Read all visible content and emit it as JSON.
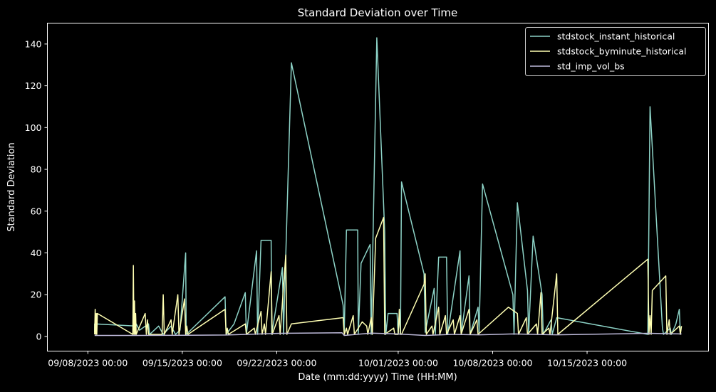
{
  "chart_data": {
    "type": "line",
    "title": "Standard Deviation over Time",
    "xlabel": "Date (mm:dd:yyyy) Time (HH:MM)",
    "ylabel": "Standard Deviation",
    "xlim": [
      "2023-09-05T00:00",
      "2023-10-24T00:00"
    ],
    "ylim": [
      -7,
      150
    ],
    "x_ticks": [
      {
        "x": "2023-09-08T00:00",
        "label": "09/08/2023 00:00"
      },
      {
        "x": "2023-09-15T00:00",
        "label": "09/15/2023 00:00"
      },
      {
        "x": "2023-09-22T00:00",
        "label": "09/22/2023 00:00"
      },
      {
        "x": "2023-10-01T00:00",
        "label": "10/01/2023 00:00"
      },
      {
        "x": "2023-10-08T00:00",
        "label": "10/08/2023 00:00"
      },
      {
        "x": "2023-10-15T00:00",
        "label": "10/15/2023 00:00"
      }
    ],
    "y_ticks": [
      0,
      20,
      40,
      60,
      80,
      100,
      120,
      140
    ],
    "grid": false,
    "legend_position": "top-right",
    "series": [
      {
        "name": "stdstock_instant_historical",
        "color": "#8dd3c7",
        "points": [
          [
            "2023-09-08T12:00",
            2
          ],
          [
            "2023-09-08T12:00",
            6
          ],
          [
            "2023-09-11T12:00",
            5
          ],
          [
            "2023-09-11T12:00",
            1
          ],
          [
            "2023-09-11T14:00",
            6
          ],
          [
            "2023-09-11T20:00",
            3
          ],
          [
            "2023-09-12T12:00",
            6
          ],
          [
            "2023-09-12T14:00",
            1
          ],
          [
            "2023-09-13T06:00",
            5
          ],
          [
            "2023-09-13T14:00",
            1
          ],
          [
            "2023-09-14T04:00",
            5
          ],
          [
            "2023-09-14T12:00",
            1
          ],
          [
            "2023-09-14T20:00",
            3
          ],
          [
            "2023-09-15T06:00",
            40
          ],
          [
            "2023-09-15T07:00",
            1
          ],
          [
            "2023-09-18T04:00",
            19
          ],
          [
            "2023-09-18T06:00",
            1
          ],
          [
            "2023-09-18T20:00",
            6
          ],
          [
            "2023-09-19T16:00",
            21
          ],
          [
            "2023-09-19T18:00",
            1
          ],
          [
            "2023-09-20T12:00",
            41
          ],
          [
            "2023-09-20T14:00",
            1
          ],
          [
            "2023-09-20T20:00",
            46
          ],
          [
            "2023-09-21T14:00",
            46
          ],
          [
            "2023-09-21T15:00",
            1
          ],
          [
            "2023-09-22T10:00",
            33
          ],
          [
            "2023-09-22T12:00",
            1
          ],
          [
            "2023-09-23T02:00",
            131
          ],
          [
            "2023-09-26T22:00",
            15
          ],
          [
            "2023-09-27T00:00",
            2
          ],
          [
            "2023-09-27T04:00",
            51
          ],
          [
            "2023-09-28T00:00",
            51
          ],
          [
            "2023-09-28T01:00",
            1
          ],
          [
            "2023-09-28T06:00",
            35
          ],
          [
            "2023-09-28T22:00",
            44
          ],
          [
            "2023-09-29T00:00",
            1
          ],
          [
            "2023-09-29T10:00",
            143
          ],
          [
            "2023-09-30T00:00",
            50
          ],
          [
            "2023-09-30T02:00",
            1
          ],
          [
            "2023-09-30T06:00",
            11
          ],
          [
            "2023-09-30T22:00",
            11
          ],
          [
            "2023-10-01T00:00",
            1
          ],
          [
            "2023-10-01T02:00",
            11
          ],
          [
            "2023-10-01T04:00",
            1
          ],
          [
            "2023-10-01T06:00",
            74
          ],
          [
            "2023-10-02T22:00",
            30
          ],
          [
            "2023-10-03T00:00",
            2
          ],
          [
            "2023-10-03T16:00",
            23
          ],
          [
            "2023-10-03T18:00",
            1
          ],
          [
            "2023-10-04T00:00",
            38
          ],
          [
            "2023-10-04T14:00",
            38
          ],
          [
            "2023-10-04T16:00",
            1
          ],
          [
            "2023-10-05T14:00",
            41
          ],
          [
            "2023-10-05T16:00",
            1
          ],
          [
            "2023-10-06T06:00",
            29
          ],
          [
            "2023-10-06T08:00",
            1
          ],
          [
            "2023-10-06T22:00",
            14
          ],
          [
            "2023-10-07T00:00",
            2
          ],
          [
            "2023-10-07T06:00",
            73
          ],
          [
            "2023-10-09T12:00",
            20
          ],
          [
            "2023-10-09T14:00",
            1
          ],
          [
            "2023-10-09T20:00",
            64
          ],
          [
            "2023-10-10T14:00",
            22
          ],
          [
            "2023-10-10T16:00",
            1
          ],
          [
            "2023-10-11T00:00",
            48
          ],
          [
            "2023-10-11T16:00",
            20
          ],
          [
            "2023-10-11T18:00",
            1
          ],
          [
            "2023-10-12T08:00",
            8
          ],
          [
            "2023-10-12T10:00",
            1
          ],
          [
            "2023-10-12T18:00",
            9
          ],
          [
            "2023-10-19T12:00",
            1
          ],
          [
            "2023-10-19T16:00",
            110
          ],
          [
            "2023-10-20T14:00",
            4
          ],
          [
            "2023-10-20T16:00",
            1
          ],
          [
            "2023-10-21T04:00",
            4
          ],
          [
            "2023-10-21T06:00",
            1
          ],
          [
            "2023-10-21T14:00",
            6
          ],
          [
            "2023-10-21T20:00",
            13
          ],
          [
            "2023-10-21T22:00",
            1
          ]
        ]
      },
      {
        "name": "stdstock_byminute_historical",
        "color": "#ffffb3",
        "points": [
          [
            "2023-09-08T12:00",
            1
          ],
          [
            "2023-09-08T13:00",
            13
          ],
          [
            "2023-09-08T14:00",
            1
          ],
          [
            "2023-09-08T15:00",
            11
          ],
          [
            "2023-09-08T16:00",
            1
          ],
          [
            "2023-09-08T17:00",
            11
          ],
          [
            "2023-09-11T08:00",
            1
          ],
          [
            "2023-09-11T09:00",
            34
          ],
          [
            "2023-09-11T10:00",
            1
          ],
          [
            "2023-09-11T11:00",
            17
          ],
          [
            "2023-09-11T12:00",
            1
          ],
          [
            "2023-09-11T13:00",
            11
          ],
          [
            "2023-09-11T14:00",
            1
          ],
          [
            "2023-09-12T06:00",
            11
          ],
          [
            "2023-09-12T08:00",
            1
          ],
          [
            "2023-09-12T10:00",
            8
          ],
          [
            "2023-09-12T12:00",
            1
          ],
          [
            "2023-09-13T12:00",
            1
          ],
          [
            "2023-09-13T14:00",
            20
          ],
          [
            "2023-09-13T16:00",
            1
          ],
          [
            "2023-09-14T04:00",
            8
          ],
          [
            "2023-09-14T06:00",
            1
          ],
          [
            "2023-09-14T16:00",
            20
          ],
          [
            "2023-09-14T18:00",
            1
          ],
          [
            "2023-09-15T04:00",
            18
          ],
          [
            "2023-09-15T06:00",
            1
          ],
          [
            "2023-09-15T08:00",
            5
          ],
          [
            "2023-09-15T10:00",
            1
          ],
          [
            "2023-09-18T04:00",
            13
          ],
          [
            "2023-09-18T06:00",
            1
          ],
          [
            "2023-09-18T08:00",
            4
          ],
          [
            "2023-09-18T10:00",
            1
          ],
          [
            "2023-09-19T16:00",
            6
          ],
          [
            "2023-09-19T18:00",
            1
          ],
          [
            "2023-09-20T08:00",
            4
          ],
          [
            "2023-09-20T10:00",
            1
          ],
          [
            "2023-09-20T20:00",
            12
          ],
          [
            "2023-09-20T22:00",
            1
          ],
          [
            "2023-09-21T02:00",
            6
          ],
          [
            "2023-09-21T04:00",
            1
          ],
          [
            "2023-09-21T14:00",
            31
          ],
          [
            "2023-09-21T16:00",
            1
          ],
          [
            "2023-09-22T04:00",
            10
          ],
          [
            "2023-09-22T06:00",
            1
          ],
          [
            "2023-09-22T16:00",
            39
          ],
          [
            "2023-09-22T18:00",
            1
          ],
          [
            "2023-09-23T02:00",
            6
          ],
          [
            "2023-09-26T22:00",
            9
          ],
          [
            "2023-09-27T00:00",
            1
          ],
          [
            "2023-09-27T04:00",
            4
          ],
          [
            "2023-09-27T06:00",
            1
          ],
          [
            "2023-09-27T16:00",
            10
          ],
          [
            "2023-09-27T18:00",
            1
          ],
          [
            "2023-09-28T08:00",
            7
          ],
          [
            "2023-09-28T16:00",
            5
          ],
          [
            "2023-09-28T18:00",
            1
          ],
          [
            "2023-09-29T00:00",
            9
          ],
          [
            "2023-09-29T02:00",
            1
          ],
          [
            "2023-09-29T08:00",
            47
          ],
          [
            "2023-09-29T22:00",
            57
          ],
          [
            "2023-09-30T00:00",
            1
          ],
          [
            "2023-09-30T16:00",
            4
          ],
          [
            "2023-09-30T18:00",
            1
          ],
          [
            "2023-10-01T00:00",
            1
          ],
          [
            "2023-10-01T02:00",
            13
          ],
          [
            "2023-10-01T04:00",
            1
          ],
          [
            "2023-10-01T06:00",
            1
          ],
          [
            "2023-10-02T22:00",
            25
          ],
          [
            "2023-10-03T00:00",
            30
          ],
          [
            "2023-10-03T02:00",
            1
          ],
          [
            "2023-10-03T12:00",
            5
          ],
          [
            "2023-10-03T14:00",
            1
          ],
          [
            "2023-10-04T00:00",
            14
          ],
          [
            "2023-10-04T02:00",
            1
          ],
          [
            "2023-10-04T12:00",
            10
          ],
          [
            "2023-10-04T14:00",
            1
          ],
          [
            "2023-10-05T02:00",
            8
          ],
          [
            "2023-10-05T04:00",
            1
          ],
          [
            "2023-10-05T14:00",
            10
          ],
          [
            "2023-10-05T16:00",
            1
          ],
          [
            "2023-10-06T06:00",
            13
          ],
          [
            "2023-10-06T08:00",
            1
          ],
          [
            "2023-10-06T20:00",
            8
          ],
          [
            "2023-10-06T22:00",
            1
          ],
          [
            "2023-10-09T04:00",
            14
          ],
          [
            "2023-10-09T20:00",
            11
          ],
          [
            "2023-10-09T22:00",
            1
          ],
          [
            "2023-10-10T12:00",
            9
          ],
          [
            "2023-10-10T14:00",
            1
          ],
          [
            "2023-10-11T06:00",
            6
          ],
          [
            "2023-10-11T08:00",
            1
          ],
          [
            "2023-10-11T14:00",
            21
          ],
          [
            "2023-10-11T16:00",
            1
          ],
          [
            "2023-10-12T04:00",
            4
          ],
          [
            "2023-10-12T06:00",
            1
          ],
          [
            "2023-10-12T18:00",
            30
          ],
          [
            "2023-10-12T20:00",
            1
          ],
          [
            "2023-10-19T12:00",
            37
          ],
          [
            "2023-10-19T14:00",
            1
          ],
          [
            "2023-10-19T16:00",
            10
          ],
          [
            "2023-10-19T18:00",
            1
          ],
          [
            "2023-10-19T20:00",
            22
          ],
          [
            "2023-10-20T20:00",
            29
          ],
          [
            "2023-10-20T22:00",
            1
          ],
          [
            "2023-10-21T02:00",
            8
          ],
          [
            "2023-10-21T04:00",
            1
          ],
          [
            "2023-10-21T20:00",
            5
          ],
          [
            "2023-10-21T22:00",
            1
          ],
          [
            "2023-10-22T00:00",
            5
          ]
        ]
      },
      {
        "name": "std_imp_vol_bs",
        "color": "#bebada",
        "points": [
          [
            "2023-09-08T12:00",
            0.5
          ],
          [
            "2023-09-11T12:00",
            0.5
          ],
          [
            "2023-09-15T06:00",
            0.6
          ],
          [
            "2023-09-18T06:00",
            0.7
          ],
          [
            "2023-09-22T06:00",
            1.5
          ],
          [
            "2023-09-26T20:00",
            1.8
          ],
          [
            "2023-09-27T00:00",
            0.5
          ],
          [
            "2023-09-29T00:00",
            1.6
          ],
          [
            "2023-09-30T22:00",
            1.2
          ],
          [
            "2023-10-03T00:00",
            0.5
          ],
          [
            "2023-10-05T00:00",
            1.0
          ],
          [
            "2023-10-07T00:00",
            0.8
          ],
          [
            "2023-10-09T12:00",
            1.2
          ],
          [
            "2023-10-12T18:00",
            0.8
          ],
          [
            "2023-10-19T12:00",
            1.5
          ],
          [
            "2023-10-22T00:00",
            1.2
          ]
        ]
      }
    ]
  }
}
